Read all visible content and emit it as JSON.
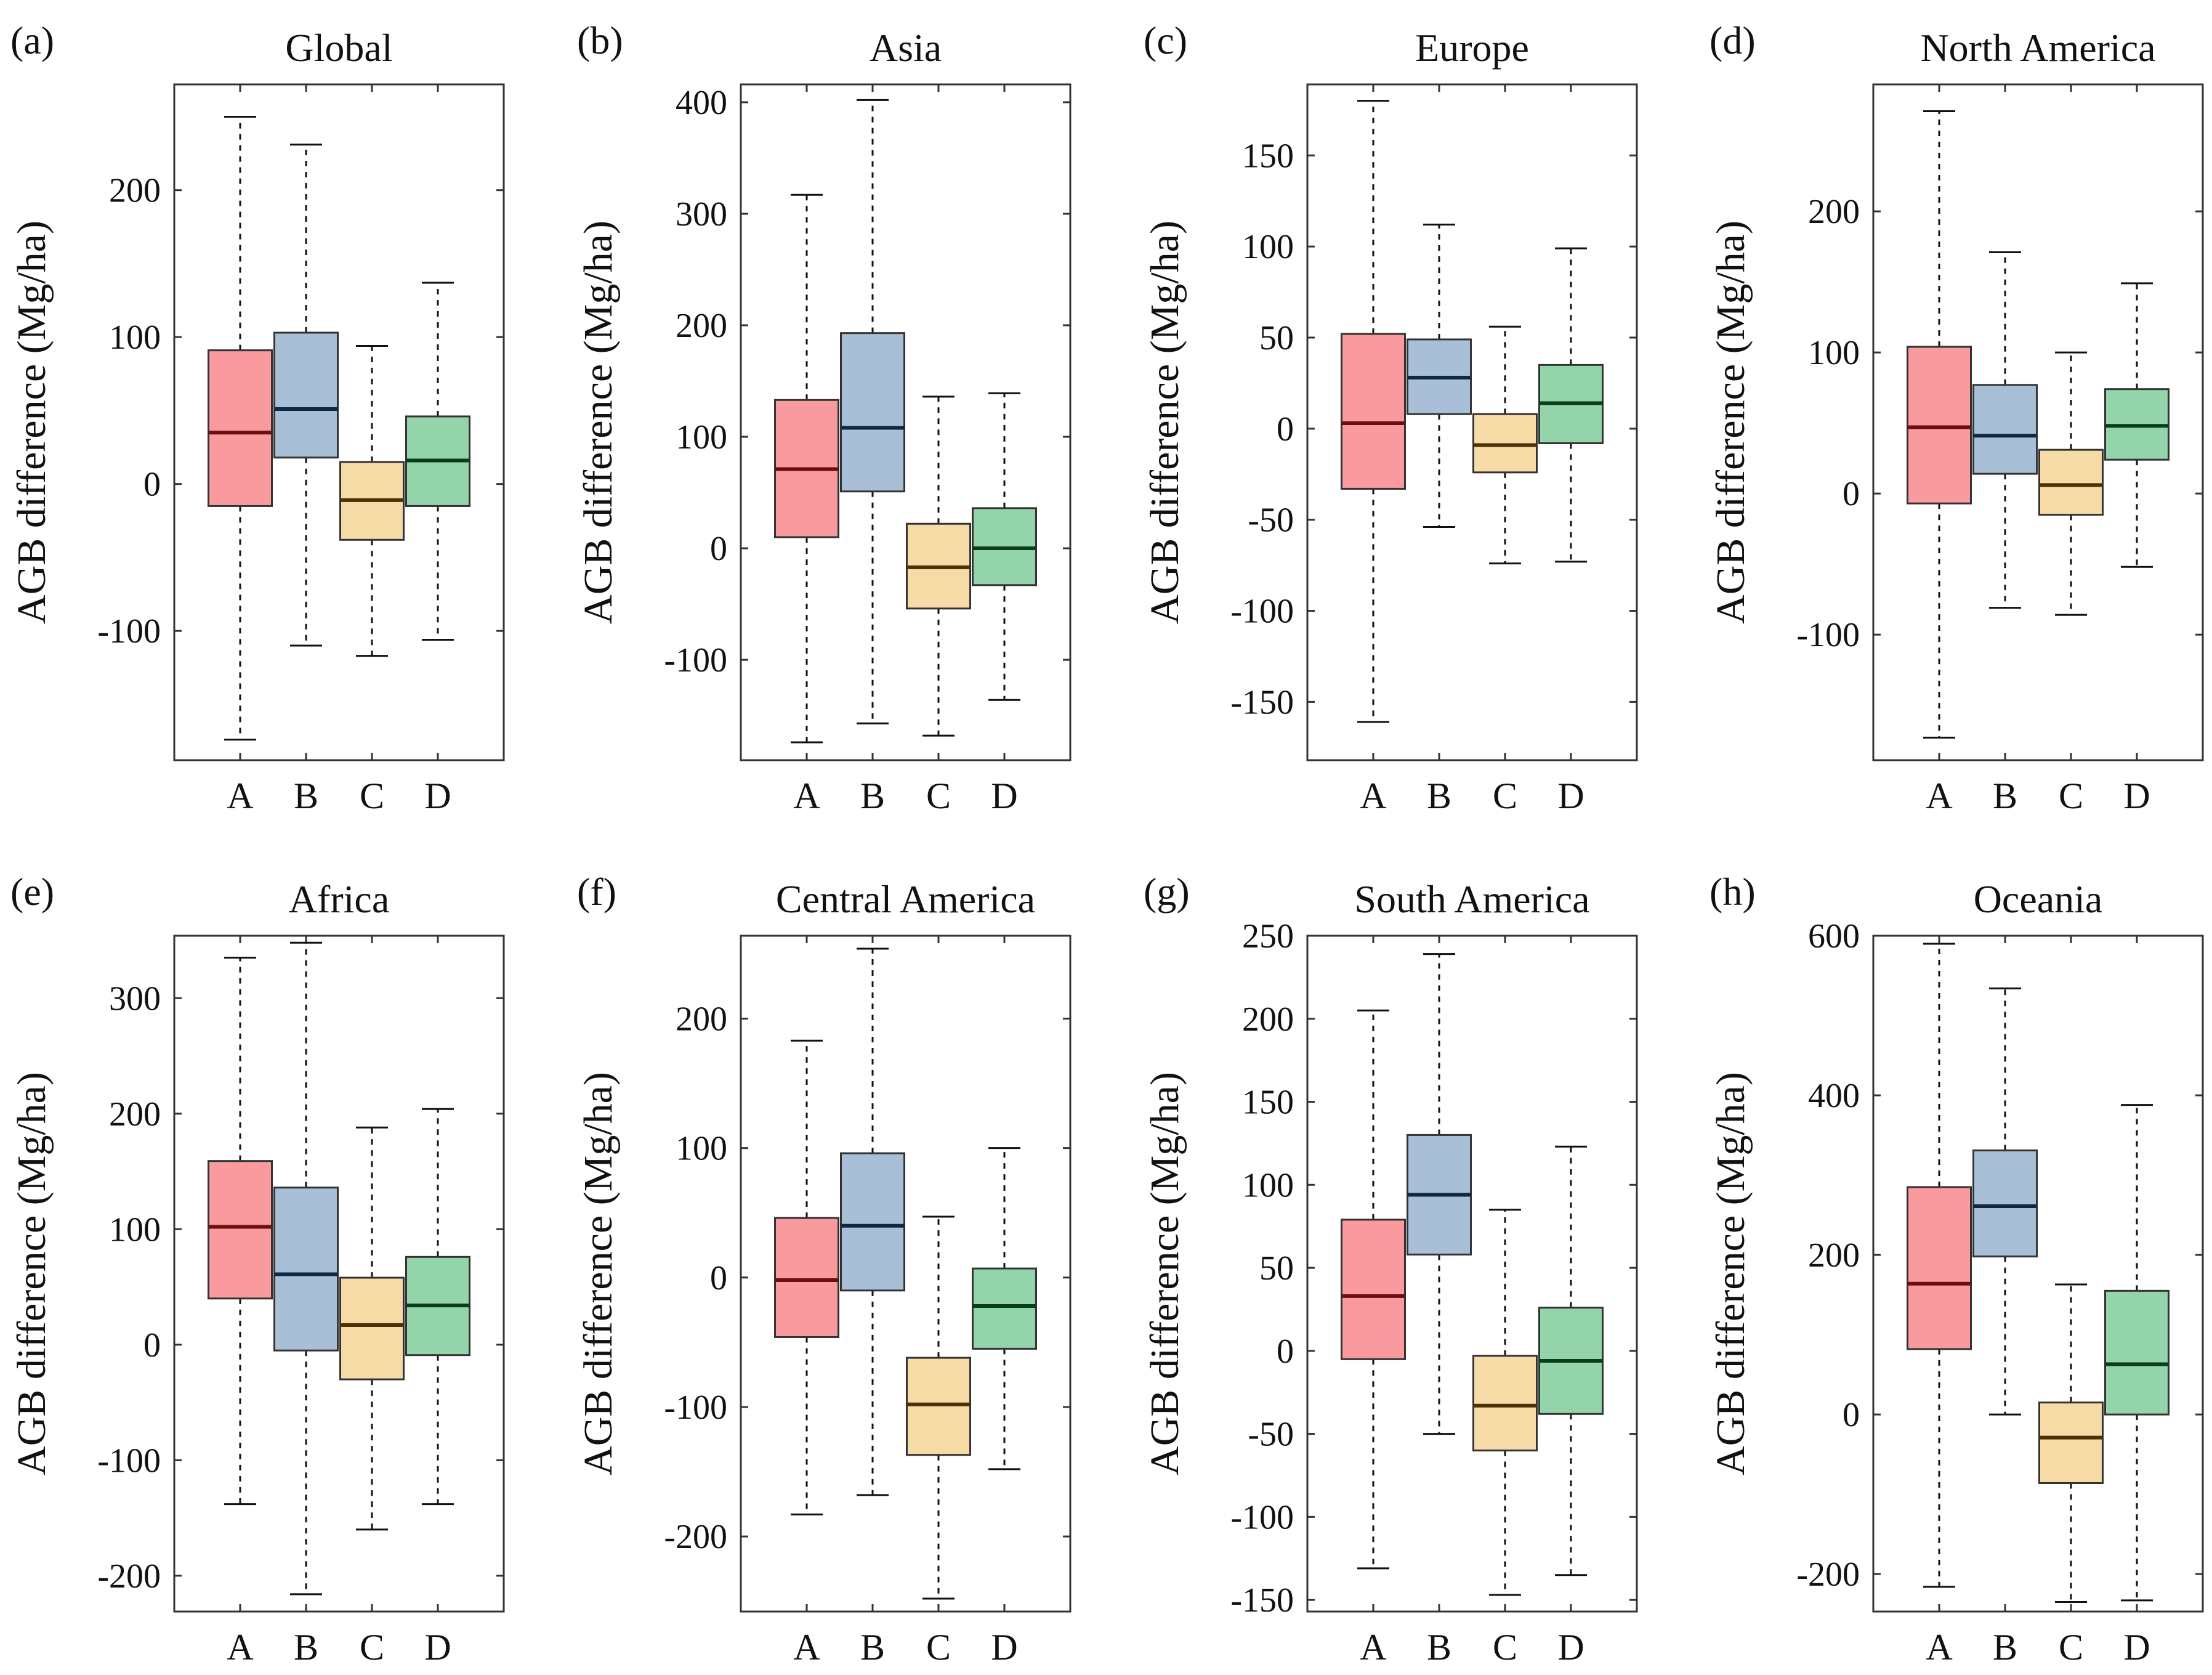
{
  "style": {
    "category_colors": {
      "A": {
        "fill": "#f99a9e",
        "median": "#6e0d10"
      },
      "B": {
        "fill": "#a8bfd7",
        "median": "#0d2945"
      },
      "C": {
        "fill": "#f7dba7",
        "median": "#4f3006"
      },
      "D": {
        "fill": "#93d4aa",
        "median": "#0a3d1b"
      }
    }
  },
  "chart_data": [
    {
      "type": "box",
      "panel": "(a)",
      "title": "Global",
      "ylabel": "AGB difference (Mg/ha)",
      "ylim": [
        -188,
        272
      ],
      "yticks": [
        -100,
        0,
        100,
        200
      ],
      "ytick_labels": [
        "-100",
        "0",
        "100",
        "200"
      ],
      "categories": [
        "A",
        "B",
        "C",
        "D"
      ],
      "boxes": [
        {
          "category": "A",
          "whislo": -174,
          "q1": -15,
          "med": 35,
          "q3": 91,
          "whishi": 250
        },
        {
          "category": "B",
          "whislo": -110,
          "q1": 18,
          "med": 51,
          "q3": 103,
          "whishi": 231
        },
        {
          "category": "C",
          "whislo": -117,
          "q1": -38,
          "med": -11,
          "q3": 15,
          "whishi": 94
        },
        {
          "category": "D",
          "whislo": -106,
          "q1": -15,
          "med": 16,
          "q3": 46,
          "whishi": 137
        }
      ]
    },
    {
      "type": "box",
      "panel": "(b)",
      "title": "Asia",
      "ylabel": "AGB difference (Mg/ha)",
      "ylim": [
        -190,
        416
      ],
      "yticks": [
        -100,
        0,
        100,
        200,
        300,
        400
      ],
      "ytick_labels": [
        "-100",
        "0",
        "100",
        "200",
        "300",
        "400"
      ],
      "categories": [
        "A",
        "B",
        "C",
        "D"
      ],
      "boxes": [
        {
          "category": "A",
          "whislo": -174,
          "q1": 10,
          "med": 71,
          "q3": 133,
          "whishi": 317
        },
        {
          "category": "B",
          "whislo": -157,
          "q1": 51,
          "med": 108,
          "q3": 193,
          "whishi": 402
        },
        {
          "category": "C",
          "whislo": -168,
          "q1": -54,
          "med": -17,
          "q3": 22,
          "whishi": 136
        },
        {
          "category": "D",
          "whislo": -136,
          "q1": -33,
          "med": 0,
          "q3": 36,
          "whishi": 139
        }
      ]
    },
    {
      "type": "box",
      "panel": "(c)",
      "title": "Europe",
      "ylabel": "AGB difference (Mg/ha)",
      "ylim": [
        -182,
        189
      ],
      "yticks": [
        -150,
        -100,
        -50,
        0,
        50,
        100,
        150
      ],
      "ytick_labels": [
        "-150",
        "-100",
        "-50",
        "0",
        "50",
        "100",
        "150"
      ],
      "categories": [
        "A",
        "B",
        "C",
        "D"
      ],
      "boxes": [
        {
          "category": "A",
          "whislo": -161,
          "q1": -33,
          "med": 3,
          "q3": 52,
          "whishi": 180
        },
        {
          "category": "B",
          "whislo": -54,
          "q1": 8,
          "med": 28,
          "q3": 49,
          "whishi": 112
        },
        {
          "category": "C",
          "whislo": -74,
          "q1": -24,
          "med": -9,
          "q3": 8,
          "whishi": 56
        },
        {
          "category": "D",
          "whislo": -73,
          "q1": -8,
          "med": 14,
          "q3": 35,
          "whishi": 99
        }
      ]
    },
    {
      "type": "box",
      "panel": "(d)",
      "title": "North America",
      "ylabel": "AGB difference (Mg/ha)",
      "ylim": [
        -189,
        290
      ],
      "yticks": [
        -100,
        0,
        100,
        200
      ],
      "ytick_labels": [
        "-100",
        "0",
        "100",
        "200"
      ],
      "categories": [
        "A",
        "B",
        "C",
        "D"
      ],
      "boxes": [
        {
          "category": "A",
          "whislo": -173,
          "q1": -7,
          "med": 47,
          "q3": 104,
          "whishi": 271
        },
        {
          "category": "B",
          "whislo": -81,
          "q1": 14,
          "med": 41,
          "q3": 77,
          "whishi": 171
        },
        {
          "category": "C",
          "whislo": -86,
          "q1": -15,
          "med": 6,
          "q3": 31,
          "whishi": 100
        },
        {
          "category": "D",
          "whislo": -52,
          "q1": 24,
          "med": 48,
          "q3": 74,
          "whishi": 149
        }
      ]
    },
    {
      "type": "box",
      "panel": "(e)",
      "title": "Africa",
      "ylabel": "AGB difference (Mg/ha)",
      "ylim": [
        -231,
        354
      ],
      "yticks": [
        -200,
        -100,
        0,
        100,
        200,
        300
      ],
      "ytick_labels": [
        "-200",
        "-100",
        "0",
        "100",
        "200",
        "300"
      ],
      "categories": [
        "A",
        "B",
        "C",
        "D"
      ],
      "boxes": [
        {
          "category": "A",
          "whislo": -138,
          "q1": 40,
          "med": 102,
          "q3": 159,
          "whishi": 335
        },
        {
          "category": "B",
          "whislo": -216,
          "q1": -5,
          "med": 61,
          "q3": 136,
          "whishi": 348
        },
        {
          "category": "C",
          "whislo": -160,
          "q1": -30,
          "med": 17,
          "q3": 58,
          "whishi": 188
        },
        {
          "category": "D",
          "whislo": -138,
          "q1": -9,
          "med": 34,
          "q3": 76,
          "whishi": 204
        }
      ]
    },
    {
      "type": "box",
      "panel": "(f)",
      "title": "Central America",
      "ylabel": "AGB difference (Mg/ha)",
      "ylim": [
        -258,
        264
      ],
      "yticks": [
        -200,
        -100,
        0,
        100,
        200
      ],
      "ytick_labels": [
        "-200",
        "-100",
        "0",
        "100",
        "200"
      ],
      "categories": [
        "A",
        "B",
        "C",
        "D"
      ],
      "boxes": [
        {
          "category": "A",
          "whislo": -183,
          "q1": -46,
          "med": -2,
          "q3": 46,
          "whishi": 183
        },
        {
          "category": "B",
          "whislo": -168,
          "q1": -10,
          "med": 40,
          "q3": 96,
          "whishi": 254
        },
        {
          "category": "C",
          "whislo": -248,
          "q1": -137,
          "med": -98,
          "q3": -62,
          "whishi": 47
        },
        {
          "category": "D",
          "whislo": -148,
          "q1": -55,
          "med": -22,
          "q3": 7,
          "whishi": 100
        }
      ]
    },
    {
      "type": "box",
      "panel": "(g)",
      "title": "South America",
      "ylabel": "AGB difference (Mg/ha)",
      "ylim": [
        -157,
        250
      ],
      "yticks": [
        -150,
        -100,
        -50,
        0,
        50,
        100,
        150,
        200,
        250
      ],
      "ytick_labels": [
        "-150",
        "-100",
        "-50",
        "0",
        "50",
        "100",
        "150",
        "200",
        "250"
      ],
      "categories": [
        "A",
        "B",
        "C",
        "D"
      ],
      "boxes": [
        {
          "category": "A",
          "whislo": -131,
          "q1": -5,
          "med": 33,
          "q3": 79,
          "whishi": 205
        },
        {
          "category": "B",
          "whislo": -50,
          "q1": 58,
          "med": 94,
          "q3": 130,
          "whishi": 239
        },
        {
          "category": "C",
          "whislo": -147,
          "q1": -60,
          "med": -33,
          "q3": -3,
          "whishi": 85
        },
        {
          "category": "D",
          "whislo": -135,
          "q1": -38,
          "med": -6,
          "q3": 26,
          "whishi": 123
        }
      ]
    },
    {
      "type": "box",
      "panel": "(h)",
      "title": "Oceania",
      "ylabel": "AGB difference (Mg/ha)",
      "ylim": [
        -247,
        600
      ],
      "yticks": [
        -200,
        0,
        200,
        400,
        600
      ],
      "ytick_labels": [
        "-200",
        "0",
        "200",
        "400",
        "600"
      ],
      "categories": [
        "A",
        "B",
        "C",
        "D"
      ],
      "boxes": [
        {
          "category": "A",
          "whislo": -216,
          "q1": 82,
          "med": 164,
          "q3": 285,
          "whishi": 590
        },
        {
          "category": "B",
          "whislo": 0,
          "q1": 198,
          "med": 261,
          "q3": 331,
          "whishi": 534
        },
        {
          "category": "C",
          "whislo": -235,
          "q1": -86,
          "med": -29,
          "q3": 15,
          "whishi": 163
        },
        {
          "category": "D",
          "whislo": -233,
          "q1": 0,
          "med": 63,
          "q3": 155,
          "whishi": 388
        }
      ]
    }
  ]
}
